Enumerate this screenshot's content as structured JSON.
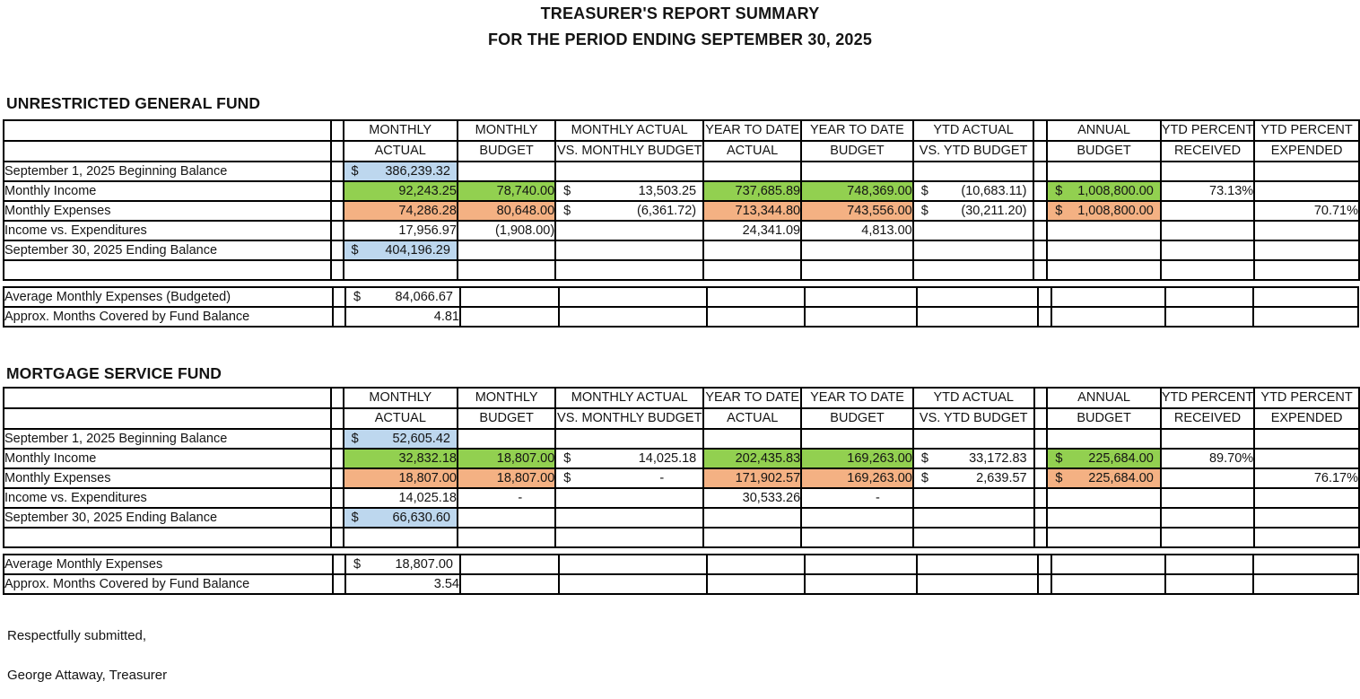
{
  "title": {
    "line1": "TREASURER'S REPORT SUMMARY",
    "line2": "FOR THE PERIOD ENDING SEPTEMBER 30, 2025"
  },
  "colors": {
    "green": "#92d050",
    "orange": "#f4b183",
    "blue": "#bdd7ee"
  },
  "column_headers": [
    {
      "l1": "MONTHLY",
      "l2": "ACTUAL"
    },
    {
      "l1": "MONTHLY",
      "l2": "BUDGET"
    },
    {
      "l1": "MONTHLY ACTUAL",
      "l2": "VS. MONTHLY BUDGET"
    },
    {
      "l1": "YEAR TO DATE",
      "l2": "ACTUAL"
    },
    {
      "l1": "YEAR TO DATE",
      "l2": "BUDGET"
    },
    {
      "l1": "YTD ACTUAL",
      "l2": "VS. YTD BUDGET"
    },
    {
      "l1": "ANNUAL",
      "l2": "BUDGET"
    },
    {
      "l1": "YTD PERCENT",
      "l2": "RECEIVED"
    },
    {
      "l1": "YTD PERCENT",
      "l2": "EXPENDED"
    }
  ],
  "sections": [
    {
      "heading": "UNRESTRICTED GENERAL FUND",
      "rows": [
        {
          "label": "September 1, 2025 Beginning Balance",
          "cells": {
            "c1": {
              "d": "$",
              "v": "386,239.32",
              "fill": "blue"
            }
          }
        },
        {
          "label": "Monthly Income",
          "cells": {
            "c1": {
              "v": "92,243.25",
              "fill": "green"
            },
            "c2": {
              "v": "78,740.00",
              "fill": "green"
            },
            "c3": {
              "d": "$",
              "v": "13,503.25"
            },
            "c4": {
              "v": "737,685.89",
              "fill": "green"
            },
            "c5": {
              "v": "748,369.00",
              "fill": "green"
            },
            "c6": {
              "d": "$",
              "v": "(10,683.11)"
            },
            "c7": {
              "d": "$",
              "v": "1,008,800.00",
              "fill": "green"
            },
            "c8": {
              "v": "73.13%"
            }
          }
        },
        {
          "label": "Monthly Expenses",
          "cells": {
            "c1": {
              "v": "74,286.28",
              "fill": "orange"
            },
            "c2": {
              "v": "80,648.00",
              "fill": "orange"
            },
            "c3": {
              "d": "$",
              "v": "(6,361.72)"
            },
            "c4": {
              "v": "713,344.80",
              "fill": "orange"
            },
            "c5": {
              "v": "743,556.00",
              "fill": "orange"
            },
            "c6": {
              "d": "$",
              "v": "(30,211.20)"
            },
            "c7": {
              "d": "$",
              "v": "1,008,800.00",
              "fill": "orange"
            },
            "c9": {
              "v": "70.71%"
            }
          }
        },
        {
          "label": "Income vs. Expenditures",
          "cells": {
            "c1": {
              "v": "17,956.97"
            },
            "c2": {
              "v": "(1,908.00)"
            },
            "c4": {
              "v": "24,341.09"
            },
            "c5": {
              "v": "4,813.00"
            }
          }
        },
        {
          "label": "September 30, 2025 Ending Balance",
          "cells": {
            "c1": {
              "d": "$",
              "v": "404,196.29",
              "fill": "blue"
            }
          }
        },
        {
          "label": "",
          "cells": {}
        }
      ],
      "summary_rows": [
        {
          "label": "Average Monthly Expenses (Budgeted)",
          "cells": {
            "c1": {
              "d": "$",
              "v": "84,066.67"
            }
          }
        },
        {
          "label": "Approx. Months Covered by Fund Balance",
          "cells": {
            "c1": {
              "v": "4.81"
            }
          }
        }
      ]
    },
    {
      "heading": "MORTGAGE SERVICE FUND",
      "rows": [
        {
          "label": "September 1, 2025 Beginning Balance",
          "cells": {
            "c1": {
              "d": "$",
              "v": "52,605.42",
              "fill": "blue"
            }
          }
        },
        {
          "label": "Monthly Income",
          "cells": {
            "c1": {
              "v": "32,832.18",
              "fill": "green"
            },
            "c2": {
              "v": "18,807.00",
              "fill": "green"
            },
            "c3": {
              "d": "$",
              "v": "14,025.18"
            },
            "c4": {
              "v": "202,435.83",
              "fill": "green"
            },
            "c5": {
              "v": "169,263.00",
              "fill": "green"
            },
            "c6": {
              "d": "$",
              "v": "33,172.83"
            },
            "c7": {
              "d": "$",
              "v": "225,684.00",
              "fill": "green"
            },
            "c8": {
              "v": "89.70%"
            }
          }
        },
        {
          "label": "Monthly Expenses",
          "cells": {
            "c1": {
              "v": "18,807.00",
              "fill": "orange"
            },
            "c2": {
              "v": "18,807.00",
              "fill": "orange"
            },
            "c3": {
              "d": "$",
              "v": "-",
              "dash": true
            },
            "c4": {
              "v": "171,902.57",
              "fill": "orange"
            },
            "c5": {
              "v": "169,263.00",
              "fill": "orange"
            },
            "c6": {
              "d": "$",
              "v": "2,639.57"
            },
            "c7": {
              "d": "$",
              "v": "225,684.00",
              "fill": "orange"
            },
            "c9": {
              "v": "76.17%"
            }
          }
        },
        {
          "label": "Income vs. Expenditures",
          "cells": {
            "c1": {
              "v": "14,025.18"
            },
            "c2": {
              "v": "-",
              "dash": true
            },
            "c4": {
              "v": "30,533.26"
            },
            "c5": {
              "v": "-",
              "dash": true
            }
          }
        },
        {
          "label": "September 30, 2025 Ending Balance",
          "cells": {
            "c1": {
              "d": "$",
              "v": "66,630.60",
              "fill": "blue"
            }
          }
        },
        {
          "label": "",
          "cells": {}
        }
      ],
      "summary_rows": [
        {
          "label": "Average Monthly Expenses",
          "cells": {
            "c1": {
              "d": "$",
              "v": "18,807.00"
            }
          }
        },
        {
          "label": "Approx. Months Covered by Fund Balance",
          "cells": {
            "c1": {
              "v": "3.54"
            }
          }
        }
      ]
    }
  ],
  "footer": {
    "line1": "Respectfully submitted,",
    "line2": "George Attaway, Treasurer"
  }
}
